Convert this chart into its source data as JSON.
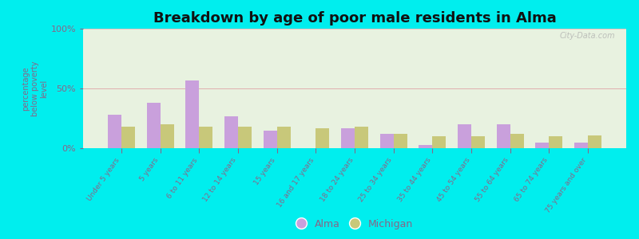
{
  "title": "Breakdown by age of poor male residents in Alma",
  "ylabel": "percentage\nbelow poverty\nlevel",
  "categories": [
    "Under 5 years",
    "5 years",
    "6 to 11 years",
    "12 to 14 years",
    "15 years",
    "16 and 17 years",
    "18 to 24 years",
    "25 to 34 years",
    "35 to 44 years",
    "45 to 54 years",
    "55 to 64 years",
    "65 to 74 years",
    "75 years and over"
  ],
  "alma_values": [
    28,
    38,
    57,
    27,
    15,
    0,
    17,
    12,
    3,
    20,
    20,
    5,
    5
  ],
  "michigan_values": [
    18,
    20,
    18,
    18,
    18,
    17,
    18,
    12,
    10,
    10,
    12,
    10,
    11
  ],
  "alma_color": "#c9a0dc",
  "michigan_color": "#c8c87a",
  "background_color": "#00eeee",
  "plot_bg_color": "#e8f2e0",
  "ylim": [
    0,
    100
  ],
  "yticks": [
    0,
    50,
    100
  ],
  "ytick_labels": [
    "0%",
    "50%",
    "100%"
  ],
  "bar_width": 0.35,
  "title_fontsize": 13,
  "legend_labels": [
    "Alma",
    "Michigan"
  ],
  "watermark": "City-Data.com",
  "tick_color": "#886688",
  "label_color": "#886688"
}
